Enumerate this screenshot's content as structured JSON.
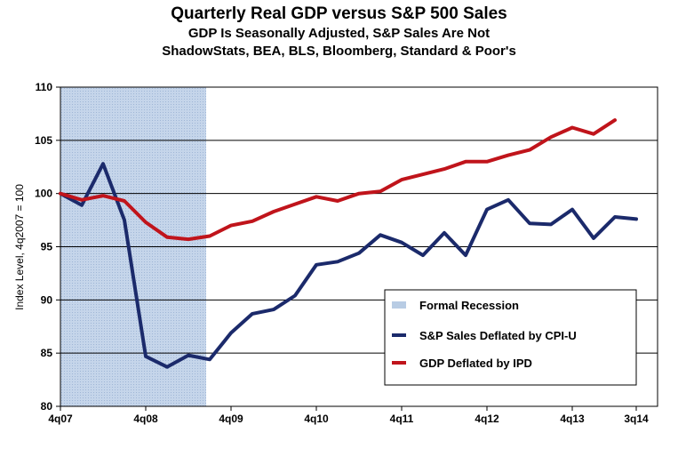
{
  "chart_data": {
    "type": "line",
    "title": "Quarterly Real GDP versus S&P 500 Sales",
    "subtitle": "GDP Is Seasonally Adjusted, S&P Sales Are Not",
    "source": "ShadowStats, BEA, BLS, Bloomberg, Standard & Poor's",
    "ylabel": "Index Level, 4q2007 = 100",
    "xlabel": "",
    "ylim": [
      80,
      110
    ],
    "yticks": [
      80,
      85,
      90,
      95,
      100,
      105,
      110
    ],
    "x_tick_labels": [
      "4q07",
      "4q08",
      "4q09",
      "4q10",
      "4q11",
      "4q12",
      "4q13",
      "3q14"
    ],
    "quarters": [
      "4q07",
      "1q08",
      "2q08",
      "3q08",
      "4q08",
      "1q09",
      "2q09",
      "3q09",
      "4q09",
      "1q10",
      "2q10",
      "3q10",
      "4q10",
      "1q11",
      "2q11",
      "3q11",
      "4q11",
      "1q12",
      "2q12",
      "3q12",
      "4q12",
      "1q13",
      "2q13",
      "3q13",
      "4q13",
      "1q14",
      "2q14",
      "3q14"
    ],
    "grid": true,
    "recession": {
      "label": "Formal Recession",
      "start": "4q07",
      "end": "2q09",
      "color": "#b8cce4"
    },
    "series": [
      {
        "name": "S&P Sales Deflated by CPI-U",
        "color": "#1b2a6b",
        "values": [
          100.0,
          98.9,
          102.8,
          97.5,
          84.7,
          83.7,
          84.8,
          84.4,
          86.9,
          88.7,
          89.1,
          90.4,
          93.3,
          93.6,
          94.4,
          96.1,
          95.4,
          94.2,
          96.3,
          94.2,
          98.5,
          99.4,
          97.2,
          97.1,
          98.5,
          95.8,
          97.8,
          97.6
        ]
      },
      {
        "name": "GDP Deflated by IPD",
        "color": "#c0141b",
        "values": [
          100.0,
          99.4,
          99.8,
          99.3,
          97.3,
          95.9,
          95.7,
          96.0,
          97.0,
          97.4,
          98.3,
          99.0,
          99.7,
          99.3,
          100.0,
          100.2,
          101.3,
          101.8,
          102.3,
          103.0,
          103.0,
          103.6,
          104.1,
          105.3,
          106.2,
          105.6,
          106.9,
          null
        ]
      }
    ],
    "legend_position": "bottom-right"
  }
}
